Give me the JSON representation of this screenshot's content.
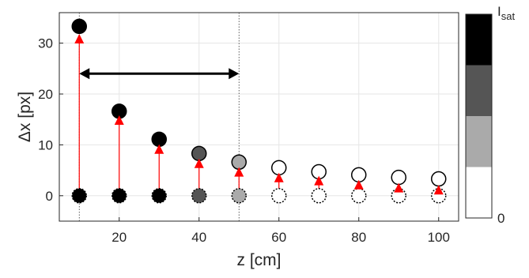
{
  "chart_data": {
    "type": "scatter",
    "xlabel": "z [cm]",
    "ylabel": "Δx [px]",
    "xlim": [
      5,
      105
    ],
    "ylim": [
      -5,
      36
    ],
    "xticks": [
      20,
      40,
      60,
      80,
      100
    ],
    "yticks": [
      0,
      10,
      20,
      30
    ],
    "grid": true,
    "series": [
      {
        "role": "measured_displacement",
        "x": [
          10,
          20,
          30,
          40,
          50,
          60,
          70,
          80,
          90,
          100
        ],
        "y": [
          33.3,
          16.6,
          11.1,
          8.3,
          6.6,
          5.5,
          4.7,
          4.1,
          3.6,
          3.3
        ],
        "intensity_level": [
          3,
          3,
          3,
          2,
          1,
          0,
          0,
          0,
          0,
          0
        ]
      },
      {
        "role": "reference_points",
        "x": [
          10,
          20,
          30,
          40,
          50,
          60,
          70,
          80,
          90,
          100
        ],
        "y": [
          0,
          0,
          0,
          0,
          0,
          0,
          0,
          0,
          0,
          0
        ],
        "intensity_level": [
          3,
          3,
          3,
          2,
          1,
          0,
          0,
          0,
          0,
          0
        ]
      },
      {
        "role": "arrows",
        "x": [
          10,
          20,
          30,
          40,
          50,
          60,
          70,
          80,
          90,
          100
        ],
        "y_end": [
          31.5,
          15.5,
          9.8,
          7.0,
          5.3,
          4.2,
          3.6,
          2.8,
          2.2,
          1.8
        ],
        "color": "#ff0000"
      }
    ],
    "annotations": [
      {
        "type": "double-arrow",
        "x_start": 10,
        "x_end": 50,
        "y": 24,
        "color": "#000000"
      },
      {
        "type": "vline-dotted",
        "x": 10
      },
      {
        "type": "vline-dotted",
        "x": 50
      }
    ],
    "colorbar": {
      "levels": [
        "#ffffff",
        "#aaaaaa",
        "#555555",
        "#000000"
      ],
      "top_label": "I",
      "top_label_sub": "sat",
      "bottom_label": "0"
    }
  },
  "colors": {
    "arrow": "#ff0000",
    "grid": "#e6e6e6",
    "axis": "#262626"
  }
}
